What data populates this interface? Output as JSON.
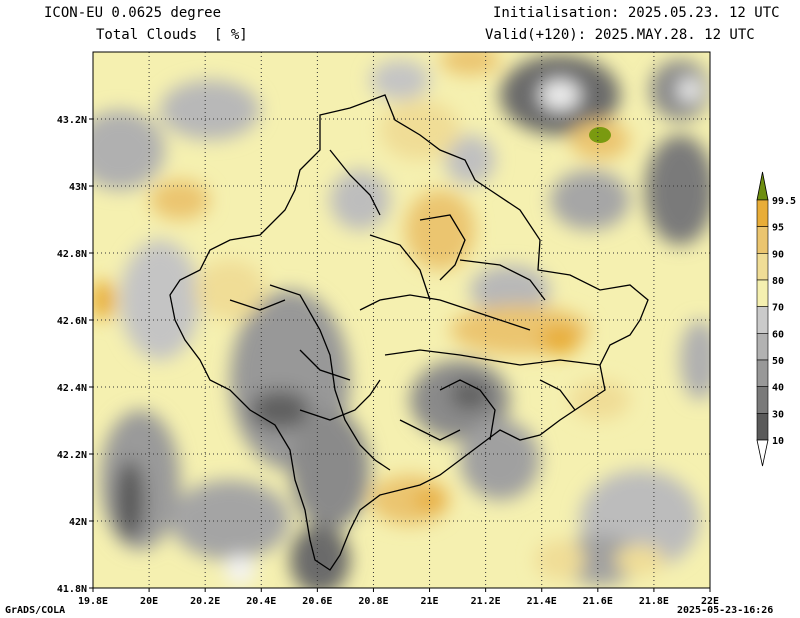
{
  "header": {
    "model": "ICON-EU 0.0625 degree",
    "variable": "Total Clouds  [ %]",
    "init": "Initialisation: 2025.05.23. 12 UTC",
    "valid": "Valid(+120): 2025.MAY.28. 12 UTC"
  },
  "footer": {
    "credit": "GrADS/COLA",
    "timestamp": "2025-05-23-16:26"
  },
  "map": {
    "lon_ticks": [
      "19.8E",
      "20E",
      "20.2E",
      "20.4E",
      "20.6E",
      "20.8E",
      "21E",
      "21.2E",
      "21.4E",
      "21.6E",
      "21.8E",
      "22E"
    ],
    "lat_ticks": [
      "41.8N",
      "42N",
      "42.2N",
      "42.4N",
      "42.6N",
      "42.8N",
      "43N",
      "43.2N"
    ],
    "extent": {
      "lon": [
        19.8,
        22.0
      ],
      "lat": [
        41.8,
        43.4
      ]
    }
  },
  "colorbar": {
    "labels": [
      "10",
      "30",
      "40",
      "50",
      "60",
      "70",
      "80",
      "90",
      "95",
      "99.5"
    ],
    "colors": [
      "#5a5a5a",
      "#7a7a7a",
      "#989898",
      "#b2b2b2",
      "#cacaca",
      "#f5f0b0",
      "#f0dd96",
      "#ebc56f",
      "#e8ad38",
      "#7a9a10"
    ],
    "top_arrow_color": "#6d8e10",
    "bottom_arrow_color": "#ffffff"
  }
}
